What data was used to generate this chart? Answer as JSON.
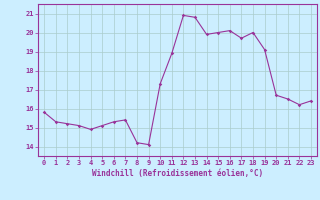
{
  "x": [
    0,
    1,
    2,
    3,
    4,
    5,
    6,
    7,
    8,
    9,
    10,
    11,
    12,
    13,
    14,
    15,
    16,
    17,
    18,
    19,
    20,
    21,
    22,
    23
  ],
  "y": [
    15.8,
    15.3,
    15.2,
    15.1,
    14.9,
    15.1,
    15.3,
    15.4,
    14.2,
    14.1,
    17.3,
    18.9,
    20.9,
    20.8,
    19.9,
    20.0,
    20.1,
    19.7,
    20.0,
    19.1,
    16.7,
    16.5,
    16.2,
    16.4
  ],
  "line_color": "#993399",
  "marker": "D",
  "marker_size": 1.8,
  "bg_color": "#cceeff",
  "grid_color": "#aacccc",
  "xlabel": "Windchill (Refroidissement éolien,°C)",
  "ylim": [
    13.5,
    21.5
  ],
  "xlim": [
    -0.5,
    23.5
  ],
  "yticks": [
    14,
    15,
    16,
    17,
    18,
    19,
    20,
    21
  ],
  "xticks": [
    0,
    1,
    2,
    3,
    4,
    5,
    6,
    7,
    8,
    9,
    10,
    11,
    12,
    13,
    14,
    15,
    16,
    17,
    18,
    19,
    20,
    21,
    22,
    23
  ],
  "tick_fontsize": 5.0,
  "xlabel_fontsize": 5.5,
  "linewidth": 0.8
}
